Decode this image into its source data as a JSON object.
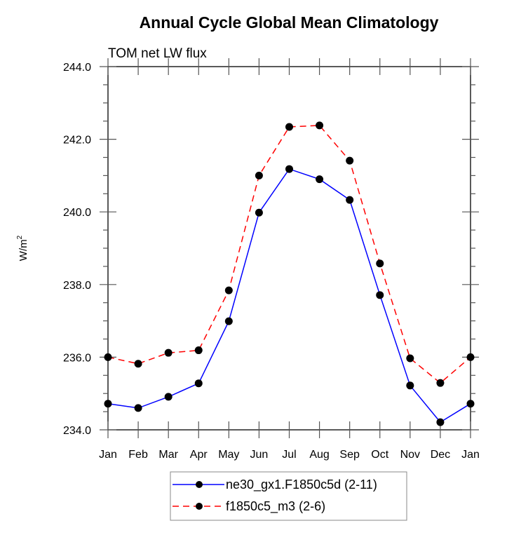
{
  "chart_data": {
    "type": "line",
    "title": "Annual Cycle Global Mean Climatology",
    "subtitle": "TOM net LW flux",
    "xlabel": "",
    "ylabel": "W/m",
    "ylabel_superscript": "2",
    "categories": [
      "Jan",
      "Feb",
      "Mar",
      "Apr",
      "May",
      "Jun",
      "Jul",
      "Aug",
      "Sep",
      "Oct",
      "Nov",
      "Dec",
      "Jan"
    ],
    "ylim": [
      234.0,
      244.0
    ],
    "yticks": [
      234.0,
      236.0,
      238.0,
      240.0,
      242.0,
      244.0
    ],
    "ytick_labels": [
      "234.0",
      "236.0",
      "238.0",
      "240.0",
      "242.0",
      "244.0"
    ],
    "y_minor_step": 0.5,
    "grid": false,
    "legend_position": "bottom-center",
    "series": [
      {
        "name": "ne30_gx1.F1850c5d (2-11)",
        "color": "#0000ff",
        "line_style": "solid",
        "marker": "filled-circle",
        "values": [
          234.72,
          234.6,
          234.91,
          235.28,
          236.99,
          239.98,
          241.18,
          240.9,
          240.33,
          237.71,
          235.22,
          234.21,
          234.72
        ]
      },
      {
        "name": "f1850c5_m3 (2-6)",
        "color": "#ff0000",
        "line_style": "dashed",
        "marker": "filled-circle",
        "values": [
          236.0,
          235.82,
          236.12,
          236.19,
          237.84,
          241.0,
          242.34,
          242.38,
          241.41,
          238.58,
          235.97,
          235.29,
          236.0
        ]
      }
    ]
  }
}
